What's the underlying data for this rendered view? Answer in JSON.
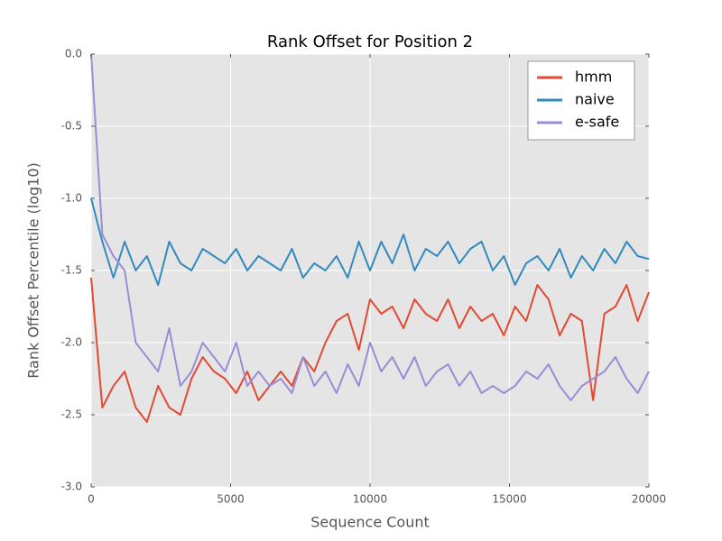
{
  "chart_data": {
    "type": "line",
    "title": "Rank Offset for Position 2",
    "x_label": "Sequence Count",
    "y_label": "Rank Offset Percentile (log10)",
    "x": [
      0,
      400,
      800,
      1200,
      1600,
      2000,
      2400,
      2800,
      3200,
      3600,
      4000,
      4400,
      4800,
      5200,
      5600,
      6000,
      6400,
      6800,
      7200,
      7600,
      8000,
      8400,
      8800,
      9200,
      9600,
      10000,
      10400,
      10800,
      11200,
      11600,
      12000,
      12400,
      12800,
      13200,
      13600,
      14000,
      14400,
      14800,
      15200,
      15600,
      16000,
      16400,
      16800,
      17200,
      17600,
      18000,
      18400,
      18800,
      19200,
      19600,
      20000
    ],
    "series": [
      {
        "name": "hmm",
        "color": "#e24a33",
        "values": [
          -1.55,
          -2.45,
          -2.3,
          -2.2,
          -2.45,
          -2.55,
          -2.3,
          -2.45,
          -2.5,
          -2.25,
          -2.1,
          -2.2,
          -2.25,
          -2.35,
          -2.2,
          -2.4,
          -2.3,
          -2.2,
          -2.3,
          -2.1,
          -2.2,
          -2.0,
          -1.85,
          -1.8,
          -2.05,
          -1.7,
          -1.8,
          -1.75,
          -1.9,
          -1.7,
          -1.8,
          -1.85,
          -1.7,
          -1.9,
          -1.75,
          -1.85,
          -1.8,
          -1.95,
          -1.75,
          -1.85,
          -1.6,
          -1.7,
          -1.95,
          -1.8,
          -1.85,
          -2.4,
          -1.8,
          -1.75,
          -1.6,
          -1.85,
          -1.65
        ]
      },
      {
        "name": "naive",
        "color": "#348abd",
        "values": [
          -1.0,
          -1.3,
          -1.55,
          -1.3,
          -1.5,
          -1.4,
          -1.6,
          -1.3,
          -1.45,
          -1.5,
          -1.35,
          -1.4,
          -1.45,
          -1.35,
          -1.5,
          -1.4,
          -1.45,
          -1.5,
          -1.35,
          -1.55,
          -1.45,
          -1.5,
          -1.4,
          -1.55,
          -1.3,
          -1.5,
          -1.3,
          -1.45,
          -1.25,
          -1.5,
          -1.35,
          -1.4,
          -1.3,
          -1.45,
          -1.35,
          -1.3,
          -1.5,
          -1.4,
          -1.6,
          -1.45,
          -1.4,
          -1.5,
          -1.35,
          -1.55,
          -1.4,
          -1.5,
          -1.35,
          -1.45,
          -1.3,
          -1.4,
          -1.42
        ]
      },
      {
        "name": "e-safe",
        "color": "#988ed5",
        "values": [
          0.0,
          -1.25,
          -1.4,
          -1.5,
          -2.0,
          -2.1,
          -2.2,
          -1.9,
          -2.3,
          -2.2,
          -2.0,
          -2.1,
          -2.2,
          -2.0,
          -2.3,
          -2.2,
          -2.3,
          -2.25,
          -2.35,
          -2.1,
          -2.3,
          -2.2,
          -2.35,
          -2.15,
          -2.3,
          -2.0,
          -2.2,
          -2.1,
          -2.25,
          -2.1,
          -2.3,
          -2.2,
          -2.15,
          -2.3,
          -2.2,
          -2.35,
          -2.3,
          -2.35,
          -2.3,
          -2.2,
          -2.25,
          -2.15,
          -2.3,
          -2.4,
          -2.3,
          -2.25,
          -2.2,
          -2.1,
          -2.25,
          -2.35,
          -2.2
        ]
      }
    ],
    "xlim": [
      0,
      20000
    ],
    "ylim": [
      -3,
      0
    ],
    "xticks": [
      0,
      5000,
      10000,
      15000,
      20000
    ],
    "yticks": [
      {
        "value": 0,
        "label": "0.0"
      },
      -0.5,
      {
        "value": -1,
        "label": "-1.0"
      },
      -1.5,
      {
        "value": -2,
        "label": "-2.0"
      },
      -2.5,
      {
        "value": -3,
        "label": "-3.0"
      }
    ],
    "grid": true,
    "legend": "upper right"
  }
}
